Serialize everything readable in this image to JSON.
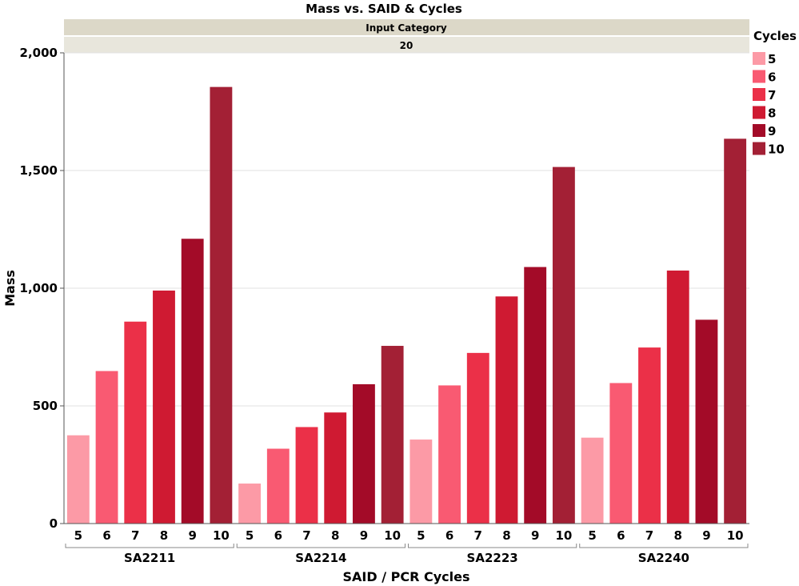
{
  "chart_data": {
    "type": "bar",
    "title": "Mass vs. SAID & Cycles",
    "strip_header": "Input Category",
    "strip_value": "20",
    "xlabel": "SAID / PCR Cycles",
    "ylabel": "Mass",
    "ylim": [
      0,
      2000
    ],
    "yticks": [
      0,
      500,
      1000,
      1500,
      2000
    ],
    "ytick_labels": [
      "0",
      "500",
      "1,000",
      "1,500",
      "2,000"
    ],
    "grid": true,
    "legend": {
      "title": "Cycles",
      "placement": "right",
      "items": [
        {
          "label": "5",
          "color": "#FC9AA6"
        },
        {
          "label": "6",
          "color": "#F95A72"
        },
        {
          "label": "7",
          "color": "#EB3048"
        },
        {
          "label": "8",
          "color": "#CF1A32"
        },
        {
          "label": "9",
          "color": "#A30B28"
        },
        {
          "label": "10",
          "color": "#A32035"
        }
      ]
    },
    "groups": [
      {
        "name": "SAID",
        "label": "SA2211",
        "cycles": [
          "5",
          "6",
          "7",
          "8",
          "9",
          "10"
        ],
        "values": [
          375,
          648,
          858,
          990,
          1210,
          1855
        ]
      },
      {
        "name": "SAID",
        "label": "SA2214",
        "cycles": [
          "5",
          "6",
          "7",
          "8",
          "9",
          "10"
        ],
        "values": [
          170,
          318,
          410,
          472,
          592,
          755
        ]
      },
      {
        "name": "SAID",
        "label": "SA2223",
        "cycles": [
          "5",
          "6",
          "7",
          "8",
          "9",
          "10"
        ],
        "values": [
          357,
          587,
          725,
          965,
          1090,
          1515
        ]
      },
      {
        "name": "SAID",
        "label": "SA2240",
        "cycles": [
          "5",
          "6",
          "7",
          "8",
          "9",
          "10"
        ],
        "values": [
          365,
          597,
          748,
          1075,
          866,
          1635
        ]
      }
    ]
  }
}
